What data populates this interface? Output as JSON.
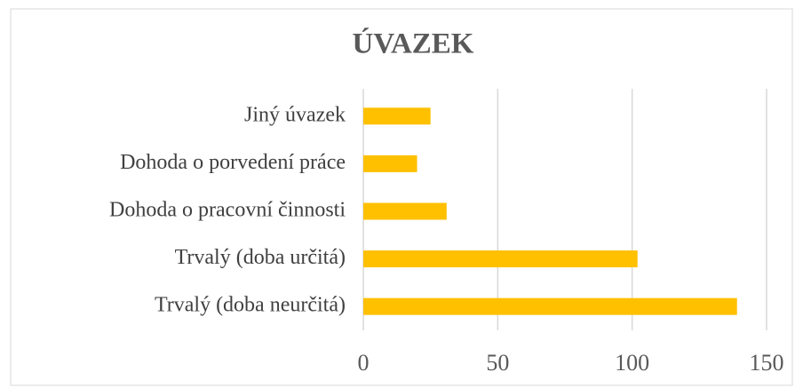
{
  "chart_data": {
    "type": "bar",
    "orientation": "horizontal",
    "title": "ÚVAZEK",
    "categories": [
      "Jiný úvazek",
      "Dohoda o porvedení práce",
      "Dohoda o pracovní činnosti",
      "Trvalý (doba určitá)",
      "Trvalý (doba neurčitá)"
    ],
    "values": [
      25,
      20,
      31,
      102,
      139
    ],
    "color": "#ffc000",
    "xlim": [
      0,
      150
    ],
    "xticks": [
      0,
      50,
      100,
      150
    ],
    "grid": true
  }
}
